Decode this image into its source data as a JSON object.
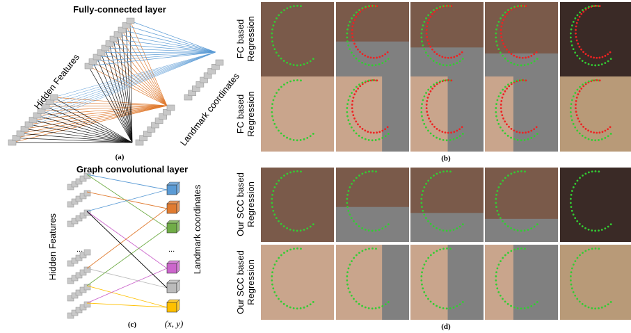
{
  "panel_a": {
    "title": "Fully-connected layer",
    "left_label": "Hidden Features",
    "right_label": "Landmark coordinates",
    "ellipsis": "......",
    "caption": "(a)"
  },
  "panel_c": {
    "title": "Graph convolutional layer",
    "left_label": "Hidden Features",
    "right_label": "Landmark coordinates",
    "left_ellipsis": "...",
    "right_ellipsis": "...",
    "coord_label": "(x, y)",
    "caption": "(c)"
  },
  "panel_b": {
    "rows": [
      [
        "FC based",
        "Regression"
      ],
      [
        "FC based",
        "Regression"
      ]
    ],
    "caption": "(b)"
  },
  "panel_d": {
    "rows": [
      [
        "Our SCC based",
        "Regression"
      ],
      [
        "Our SCC based",
        "Regression"
      ]
    ],
    "caption": "(d)"
  }
}
